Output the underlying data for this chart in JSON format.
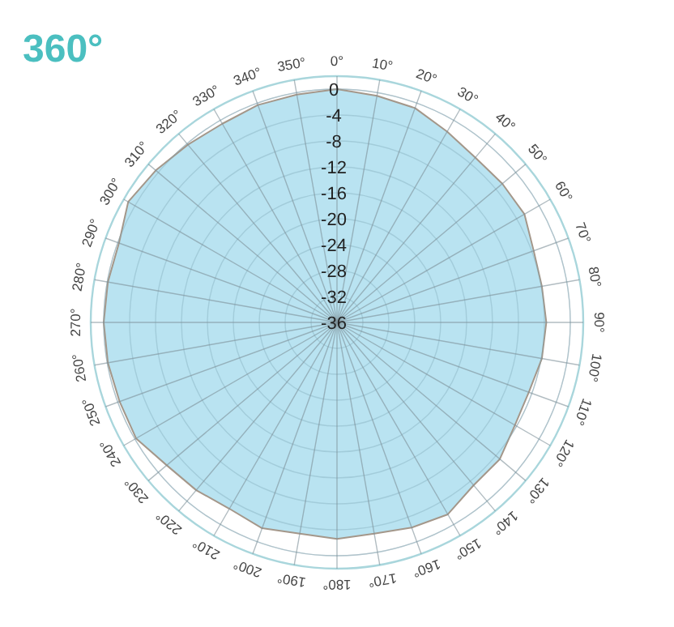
{
  "chart_data": {
    "type": "radar",
    "title": "360°",
    "categories": [
      "0°",
      "10°",
      "20°",
      "30°",
      "40°",
      "50°",
      "60°",
      "70°",
      "80°",
      "90°",
      "100°",
      "110°",
      "120°",
      "130°",
      "140°",
      "150°",
      "160°",
      "170°",
      "180°",
      "190°",
      "200°",
      "210°",
      "220°",
      "230°",
      "240°",
      "250°",
      "260°",
      "270°",
      "280°",
      "290°",
      "300°",
      "310°",
      "320°",
      "330°",
      "340°",
      "350°"
    ],
    "series": [
      {
        "color": "#b5e1f0",
        "values": [
          0,
          -0.5,
          -0.8,
          -2,
          -2.8,
          -2.7,
          -2.6,
          -3.7,
          -3.9,
          -3.7,
          -3.9,
          -4.5,
          -4.3,
          -3.2,
          -3.2,
          -1.8,
          -2.3,
          -2.9,
          -2.6,
          -2.9,
          -2.2,
          -2.8,
          -2.2,
          -1.7,
          -0.2,
          -0.3,
          -0.1,
          0,
          -0.1,
          -0.2,
          1.2,
          0.5,
          -0.2,
          -0.6,
          -0.3,
          -0.3
        ]
      }
    ],
    "ylim": [
      -36,
      2
    ],
    "yticks": [
      0,
      -4,
      -8,
      -12,
      -16,
      -20,
      -24,
      -28,
      -32,
      -36
    ],
    "grid": true
  }
}
